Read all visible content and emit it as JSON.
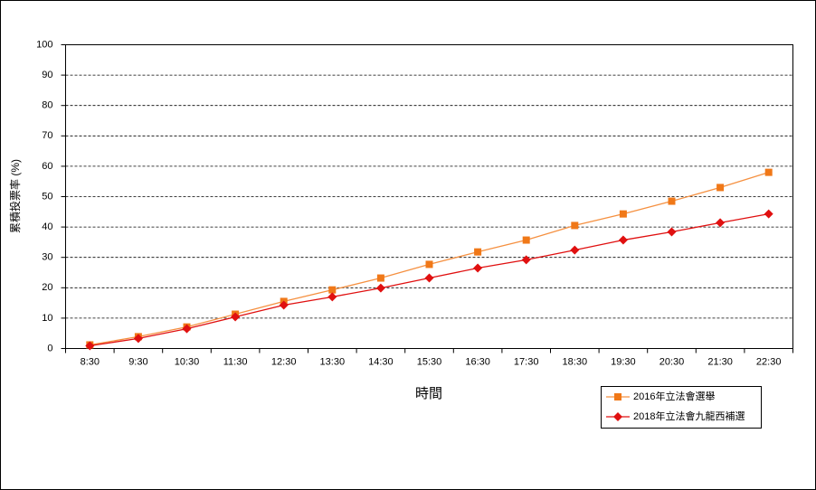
{
  "chart_data": {
    "type": "line",
    "y_label": "累積投票率 (%)",
    "x_label": "時間",
    "categories": [
      "8:30",
      "9:30",
      "10:30",
      "11:30",
      "12:30",
      "13:30",
      "14:30",
      "15:30",
      "16:30",
      "17:30",
      "18:30",
      "19:30",
      "20:30",
      "21:30",
      "22:30"
    ],
    "series": [
      {
        "name": "2016年立法會選舉",
        "color": "#f07818",
        "line_color": "#f59040",
        "marker": "square",
        "values": [
          1.2,
          3.9,
          7.1,
          11.3,
          15.5,
          19.3,
          23.2,
          27.7,
          31.8,
          35.7,
          40.5,
          44.3,
          48.5,
          53.0,
          58.0
        ]
      },
      {
        "name": "2018年立法會九龍西補選",
        "color": "#e01010",
        "line_color": "#e01010",
        "marker": "diamond",
        "values": [
          0.9,
          3.3,
          6.5,
          10.4,
          14.3,
          17.0,
          19.9,
          23.2,
          26.5,
          29.2,
          32.4,
          35.7,
          38.4,
          41.4,
          44.3
        ]
      }
    ],
    "ylim": [
      0,
      100
    ],
    "yticks": [
      0,
      10,
      20,
      30,
      40,
      50,
      60,
      70,
      80,
      90,
      100
    ],
    "grid": true,
    "legend": "bottom-right"
  }
}
